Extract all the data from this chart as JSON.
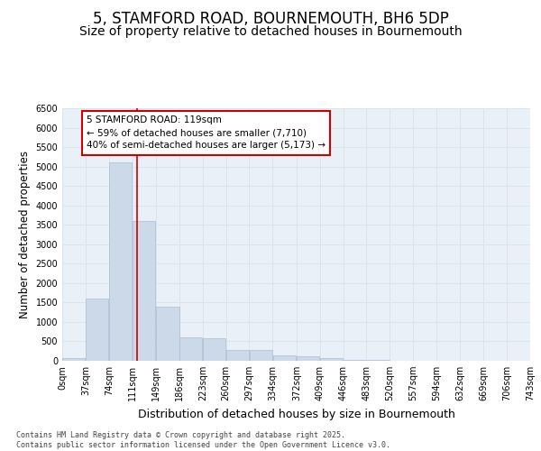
{
  "title": "5, STAMFORD ROAD, BOURNEMOUTH, BH6 5DP",
  "subtitle": "Size of property relative to detached houses in Bournemouth",
  "xlabel": "Distribution of detached houses by size in Bournemouth",
  "ylabel": "Number of detached properties",
  "bar_color": "#ccd9e8",
  "bar_edge_color": "#aabcce",
  "bins": [
    0,
    37,
    74,
    111,
    149,
    186,
    223,
    260,
    297,
    334,
    372,
    409,
    446,
    483,
    520,
    557,
    594,
    632,
    669,
    706,
    743
  ],
  "values": [
    60,
    1600,
    5100,
    3600,
    1400,
    600,
    580,
    280,
    270,
    130,
    120,
    80,
    30,
    15,
    10,
    5,
    3,
    2,
    1,
    0
  ],
  "property_size": 119,
  "annotation_text": "5 STAMFORD ROAD: 119sqm\n← 59% of detached houses are smaller (7,710)\n40% of semi-detached houses are larger (5,173) →",
  "annotation_box_color": "#ffffff",
  "annotation_box_edge": "#cc0000",
  "vline_color": "#cc0000",
  "ylim": [
    0,
    6500
  ],
  "yticks": [
    0,
    500,
    1000,
    1500,
    2000,
    2500,
    3000,
    3500,
    4000,
    4500,
    5000,
    5500,
    6000,
    6500
  ],
  "grid_color": "#d8e4f0",
  "bg_color": "#eaf0f8",
  "footer_text": "Contains HM Land Registry data © Crown copyright and database right 2025.\nContains public sector information licensed under the Open Government Licence v3.0.",
  "tick_labels": [
    "0sqm",
    "37sqm",
    "74sqm",
    "111sqm",
    "149sqm",
    "186sqm",
    "223sqm",
    "260sqm",
    "297sqm",
    "334sqm",
    "372sqm",
    "409sqm",
    "446sqm",
    "483sqm",
    "520sqm",
    "557sqm",
    "594sqm",
    "632sqm",
    "669sqm",
    "706sqm",
    "743sqm"
  ],
  "title_fontsize": 12,
  "subtitle_fontsize": 10,
  "ylabel_fontsize": 8.5,
  "xlabel_fontsize": 9,
  "tick_fontsize": 7,
  "annotation_fontsize": 7.5,
  "footer_fontsize": 6
}
